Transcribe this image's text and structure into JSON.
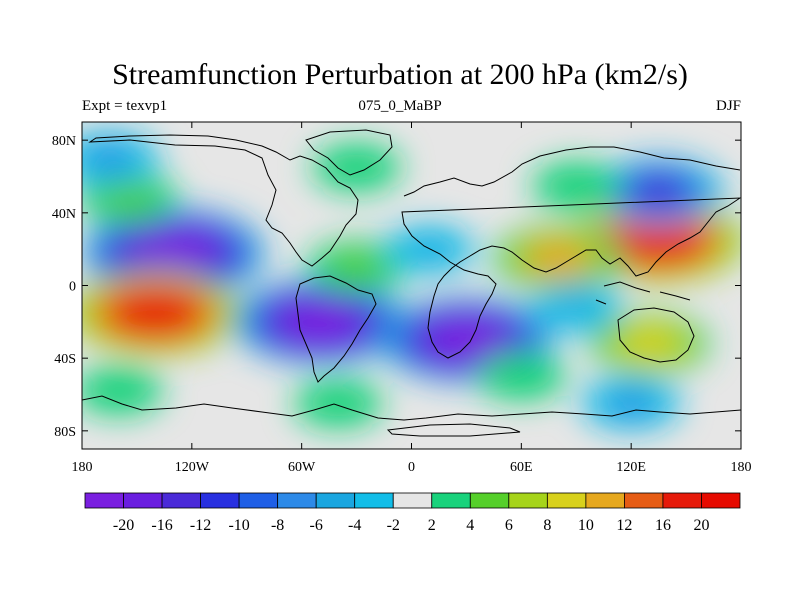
{
  "title": "Streamfunction Perturbation at 200 hPa (km2/s)",
  "left_subtitle": "Expt = texvp1",
  "center_subtitle": "075_0_MaBP",
  "right_subtitle": "DJF",
  "lat_ticks": [
    "80N",
    "40N",
    "0",
    "40S",
    "80S"
  ],
  "lon_ticks": [
    "180",
    "120W",
    "60W",
    "0",
    "60E",
    "120E",
    "180"
  ],
  "colorbar": {
    "labels": [
      "-20",
      "-16",
      "-12",
      "-10",
      "-8",
      "-6",
      "-4",
      "-2",
      "2",
      "4",
      "6",
      "8",
      "10",
      "12",
      "16",
      "20"
    ],
    "colors": [
      "#7a1fe0",
      "#6a1ee0",
      "#4a2ad8",
      "#2830e0",
      "#1f5fe6",
      "#2d8ae8",
      "#1aa6e0",
      "#12bde8",
      "#e6e6e6",
      "#19d27c",
      "#55cf2a",
      "#a6d41a",
      "#d8d11c",
      "#e6a81e",
      "#e65c14",
      "#e61a0a",
      "#e60a00"
    ]
  },
  "features": [
    {
      "lon": -130,
      "lat": 18,
      "value": -22
    },
    {
      "lon": -140,
      "lat": -15,
      "value": 20
    },
    {
      "lon": -50,
      "lat": -20,
      "value": -20
    },
    {
      "lon": 30,
      "lat": -30,
      "value": -20
    },
    {
      "lon": 135,
      "lat": 25,
      "value": 20
    },
    {
      "lon": 80,
      "lat": 15,
      "value": 12
    },
    {
      "lon": 135,
      "lat": 52,
      "value": -12
    },
    {
      "lon": -155,
      "lat": 48,
      "value": 6
    },
    {
      "lon": -165,
      "lat": 70,
      "value": -6
    },
    {
      "lon": -30,
      "lat": 65,
      "value": 4
    },
    {
      "lon": 90,
      "lat": 55,
      "value": 4
    },
    {
      "lon": 130,
      "lat": -32,
      "value": 10
    },
    {
      "lon": 90,
      "lat": -12,
      "value": -4
    },
    {
      "lon": -160,
      "lat": -58,
      "value": 4
    },
    {
      "lon": -40,
      "lat": -65,
      "value": 4
    },
    {
      "lon": 120,
      "lat": -65,
      "value": -6
    },
    {
      "lon": -30,
      "lat": 10,
      "value": 6
    },
    {
      "lon": 10,
      "lat": 20,
      "value": -4
    },
    {
      "lon": 60,
      "lat": -50,
      "value": 4
    }
  ]
}
